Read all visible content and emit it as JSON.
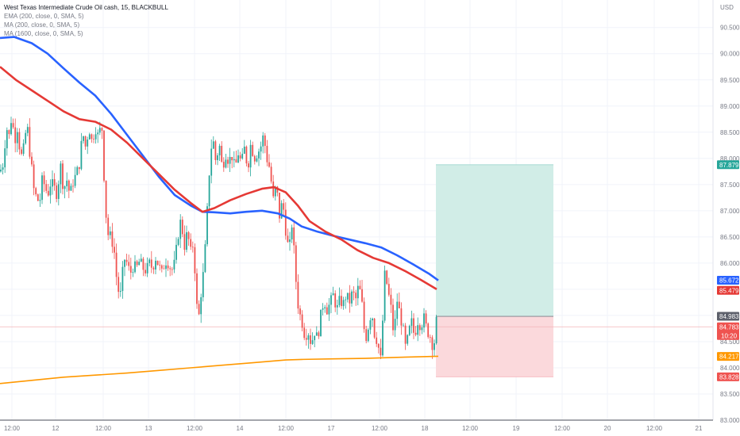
{
  "header": {
    "title": "West Texas Intermediate Crude Oil cash, 15, BLACKBULL",
    "indicators": [
      "EMA (200, close, 0, SMA, 5)",
      "MA (200, close, 0, SMA, 5)",
      "MA (1600, close, 0, SMA, 5)"
    ]
  },
  "colors": {
    "up": "#26a69a",
    "down": "#ef5350",
    "ema200": "#2962ff",
    "ma200": "#e53935",
    "ma1600": "#ff9800",
    "profit_zone": "#d1ede7",
    "loss_zone": "#fbd9dc",
    "grid": "#f0f3fa",
    "axis_text": "#787b86"
  },
  "chart_data": {
    "type": "candlestick",
    "currency": "USD",
    "y_ticks": [
      "83.000",
      "83.500",
      "84.000",
      "84.500",
      "85.000",
      "85.500",
      "86.000",
      "86.500",
      "87.000",
      "87.500",
      "88.000",
      "88.500",
      "89.000",
      "89.500",
      "90.000",
      "90.500"
    ],
    "ylim": [
      83.0,
      90.95
    ],
    "x_ticks": [
      "12:00",
      "12",
      "12:00",
      "13",
      "12:00",
      "14",
      "12:00",
      "17",
      "12:00",
      "18",
      "12:00",
      "19",
      "12:00",
      "20",
      "12:00",
      "21"
    ],
    "grid": true,
    "price_path": [
      [
        0,
        87.75
      ],
      [
        4,
        87.9
      ],
      [
        8,
        88.6
      ],
      [
        12,
        88.4
      ],
      [
        15,
        88.9
      ],
      [
        18,
        88.3
      ],
      [
        22,
        88.6
      ],
      [
        26,
        88.0
      ],
      [
        30,
        88.2
      ],
      [
        34,
        88.7
      ],
      [
        36,
        88.3
      ],
      [
        40,
        87.8
      ],
      [
        44,
        87.2
      ],
      [
        47,
        87.4
      ],
      [
        49,
        86.9
      ],
      [
        52,
        87.6
      ],
      [
        56,
        87.5
      ],
      [
        60,
        87.3
      ],
      [
        64,
        87.55
      ],
      [
        68,
        87.45
      ],
      [
        72,
        87.3
      ],
      [
        76,
        87.9
      ],
      [
        80,
        87.4
      ],
      [
        84,
        87.6
      ],
      [
        88,
        87.3
      ],
      [
        92,
        87.55
      ],
      [
        96,
        87.7
      ],
      [
        100,
        87.9
      ],
      [
        104,
        88.5
      ],
      [
        108,
        88.2
      ],
      [
        112,
        88.6
      ],
      [
        116,
        88.3
      ],
      [
        120,
        88.6
      ],
      [
        124,
        88.4
      ],
      [
        128,
        88.7
      ],
      [
        130,
        88.0
      ],
      [
        133,
        87.0
      ],
      [
        136,
        86.55
      ],
      [
        140,
        86.5
      ],
      [
        144,
        86.2
      ],
      [
        148,
        85.5
      ],
      [
        152,
        85.4
      ],
      [
        156,
        86.1
      ],
      [
        160,
        86.0
      ],
      [
        164,
        85.8
      ],
      [
        168,
        85.95
      ],
      [
        172,
        85.9
      ],
      [
        176,
        86.05
      ],
      [
        180,
        85.9
      ],
      [
        184,
        85.85
      ],
      [
        188,
        86.0
      ],
      [
        192,
        85.9
      ],
      [
        196,
        86.1
      ],
      [
        200,
        85.95
      ],
      [
        204,
        85.8
      ],
      [
        208,
        86.05
      ],
      [
        212,
        86.0
      ],
      [
        216,
        85.85
      ],
      [
        220,
        86.0
      ],
      [
        224,
        86.5
      ],
      [
        228,
        86.85
      ],
      [
        232,
        86.3
      ],
      [
        236,
        86.6
      ],
      [
        240,
        86.2
      ],
      [
        244,
        86.4
      ],
      [
        247,
        85.3
      ],
      [
        250,
        84.9
      ],
      [
        253,
        85.4
      ],
      [
        256,
        85.8
      ],
      [
        259,
        86.4
      ],
      [
        262,
        87.3
      ],
      [
        265,
        88.1
      ],
      [
        268,
        88.4
      ],
      [
        272,
        87.9
      ],
      [
        276,
        88.3
      ],
      [
        280,
        87.8
      ],
      [
        284,
        88.1
      ],
      [
        288,
        87.95
      ],
      [
        292,
        88.05
      ],
      [
        296,
        87.8
      ],
      [
        300,
        88.1
      ],
      [
        304,
        87.9
      ],
      [
        308,
        88.2
      ],
      [
        312,
        87.8
      ],
      [
        316,
        88.3
      ],
      [
        320,
        88.0
      ],
      [
        324,
        88.1
      ],
      [
        328,
        88.2
      ],
      [
        332,
        88.45
      ],
      [
        336,
        88.0
      ],
      [
        340,
        87.8
      ],
      [
        344,
        87.2
      ],
      [
        348,
        87.5
      ],
      [
        352,
        86.9
      ],
      [
        356,
        87.2
      ],
      [
        360,
        86.6
      ],
      [
        364,
        86.2
      ],
      [
        368,
        86.8
      ],
      [
        372,
        85.8
      ],
      [
        376,
        85.1
      ],
      [
        380,
        84.9
      ],
      [
        384,
        84.6
      ],
      [
        388,
        84.7
      ],
      [
        392,
        84.45
      ],
      [
        396,
        84.7
      ],
      [
        400,
        84.55
      ],
      [
        404,
        85.0
      ],
      [
        408,
        85.3
      ],
      [
        412,
        85.1
      ],
      [
        416,
        85.25
      ],
      [
        420,
        85.4
      ],
      [
        424,
        85.1
      ],
      [
        428,
        85.3
      ],
      [
        432,
        85.2
      ],
      [
        436,
        85.4
      ],
      [
        440,
        85.25
      ],
      [
        444,
        85.45
      ],
      [
        448,
        85.3
      ],
      [
        452,
        85.6
      ],
      [
        456,
        85.2
      ],
      [
        460,
        84.5
      ],
      [
        464,
        84.8
      ],
      [
        468,
        85.1
      ],
      [
        472,
        84.6
      ],
      [
        476,
        84.5
      ],
      [
        479,
        84.05
      ],
      [
        482,
        84.9
      ],
      [
        485,
        85.9
      ],
      [
        488,
        85.5
      ],
      [
        492,
        85.2
      ],
      [
        496,
        84.6
      ],
      [
        500,
        85.3
      ],
      [
        504,
        85.0
      ],
      [
        508,
        84.7
      ],
      [
        511,
        84.35
      ],
      [
        514,
        84.6
      ],
      [
        518,
        84.9
      ],
      [
        522,
        84.6
      ],
      [
        526,
        84.9
      ],
      [
        530,
        84.8
      ],
      [
        534,
        84.95
      ],
      [
        538,
        84.7
      ],
      [
        542,
        84.6
      ],
      [
        546,
        84.35
      ],
      [
        550,
        84.95
      ]
    ],
    "series": [
      {
        "name": "EMA (200, close, 0, SMA, 5)",
        "points": [
          [
            0,
            90.3
          ],
          [
            18,
            90.32
          ],
          [
            40,
            90.2
          ],
          [
            60,
            90.0
          ],
          [
            80,
            89.72
          ],
          [
            100,
            89.45
          ],
          [
            120,
            89.2
          ],
          [
            140,
            88.85
          ],
          [
            160,
            88.45
          ],
          [
            180,
            88.05
          ],
          [
            200,
            87.65
          ],
          [
            220,
            87.3
          ],
          [
            240,
            87.1
          ],
          [
            255,
            86.98
          ],
          [
            270,
            86.97
          ],
          [
            290,
            86.95
          ],
          [
            310,
            86.98
          ],
          [
            330,
            87.0
          ],
          [
            350,
            86.95
          ],
          [
            365,
            86.85
          ],
          [
            380,
            86.7
          ],
          [
            400,
            86.6
          ],
          [
            420,
            86.52
          ],
          [
            440,
            86.45
          ],
          [
            460,
            86.38
          ],
          [
            480,
            86.3
          ],
          [
            500,
            86.15
          ],
          [
            520,
            85.98
          ],
          [
            540,
            85.8
          ],
          [
            552,
            85.67
          ]
        ]
      },
      {
        "name": "MA (200, close, 0, SMA, 5)",
        "points": [
          [
            0,
            89.75
          ],
          [
            20,
            89.5
          ],
          [
            40,
            89.3
          ],
          [
            60,
            89.1
          ],
          [
            80,
            88.9
          ],
          [
            100,
            88.75
          ],
          [
            120,
            88.7
          ],
          [
            140,
            88.55
          ],
          [
            160,
            88.3
          ],
          [
            180,
            88.0
          ],
          [
            200,
            87.7
          ],
          [
            220,
            87.4
          ],
          [
            240,
            87.15
          ],
          [
            255,
            86.98
          ],
          [
            270,
            87.05
          ],
          [
            290,
            87.2
          ],
          [
            310,
            87.32
          ],
          [
            330,
            87.42
          ],
          [
            345,
            87.45
          ],
          [
            360,
            87.35
          ],
          [
            375,
            87.1
          ],
          [
            390,
            86.8
          ],
          [
            410,
            86.6
          ],
          [
            430,
            86.45
          ],
          [
            450,
            86.25
          ],
          [
            470,
            86.1
          ],
          [
            490,
            86.0
          ],
          [
            510,
            85.85
          ],
          [
            530,
            85.68
          ],
          [
            550,
            85.5
          ]
        ]
      },
      {
        "name": "MA (1600, close, 0, SMA, 5)",
        "points": [
          [
            0,
            83.7
          ],
          [
            40,
            83.76
          ],
          [
            80,
            83.82
          ],
          [
            120,
            83.86
          ],
          [
            160,
            83.9
          ],
          [
            200,
            83.95
          ],
          [
            240,
            84.0
          ],
          [
            280,
            84.05
          ],
          [
            320,
            84.1
          ],
          [
            360,
            84.15
          ],
          [
            380,
            84.16
          ],
          [
            420,
            84.17
          ],
          [
            460,
            84.18
          ],
          [
            500,
            84.2
          ],
          [
            552,
            84.22
          ]
        ]
      }
    ],
    "position": {
      "type": "long",
      "entry": 84.983,
      "target": 87.879,
      "stop": 83.828
    },
    "price_badges": [
      {
        "label": "87.879",
        "value": 87.879,
        "color": "#26a69a"
      },
      {
        "label": "85.672",
        "value": 85.672,
        "color": "#2962ff"
      },
      {
        "label": "85.479",
        "value": 85.479,
        "color": "#e53935"
      },
      {
        "label": "84.983",
        "value": 84.983,
        "color": "#5d606b"
      },
      {
        "label": "84.783",
        "label2": "10:20",
        "value": 84.783,
        "color": "#ef5350"
      },
      {
        "label": "84.217",
        "value": 84.217,
        "color": "#ff9800"
      },
      {
        "label": "83.828",
        "value": 83.828,
        "color": "#ef5350"
      }
    ],
    "current_price": 84.783
  }
}
